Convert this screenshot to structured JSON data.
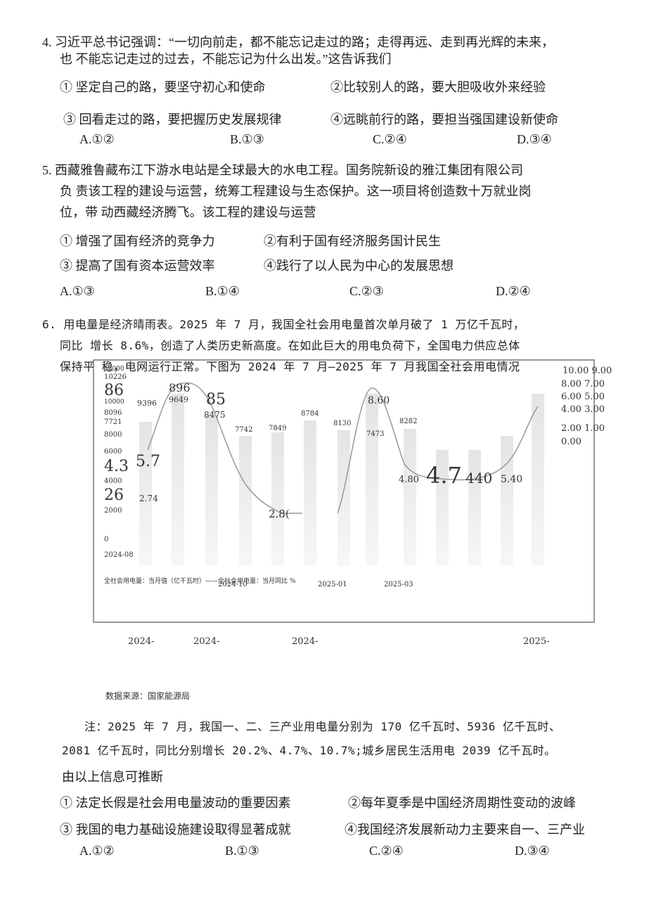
{
  "questions": [
    {
      "stem": [
        "4.  习近平总书记强调：“一切向前走，都不能忘记走过的路；走得再远、走到再光辉的未来，",
        "也  不能忘记走过的过去，不能忘记为什么出发。”这告诉我们"
      ],
      "options": [
        "① 坚定自己的路，要坚守初心和使命",
        "②比较别人的路，要大胆吸收外来经验",
        "③ 回看走过的路，要把握历史发展规律",
        "④远眺前行的路，要担当强国建设新使命"
      ],
      "choices": [
        "A.①②",
        "B.①③",
        "C.②④",
        "D.③④"
      ]
    },
    {
      "stem": [
        "5.  西藏雅鲁藏布江下游水电站是全球最大的水电工程。国务院新设的雅江集团有限公司",
        "负  责该工程的建设与运营，统筹工程建设与生态保护。这一项目将创造数十万就业岗",
        "位，带  动西藏经济腾飞。该工程的建设与运营"
      ],
      "options": [
        "① 增强了国有经济的竞争力",
        "②有利于国有经济服务国计民生",
        "③ 提高了国有资本运营效率",
        "④践行了以人民为中心的发展思想"
      ],
      "choices": [
        "A.①③",
        "B.①④",
        "C.②③",
        "D.②④"
      ]
    },
    {
      "stem": [
        "6.  用电量是经济晴雨表。2025 年 7 月，我国全社会用电量首次单月破了 1 万亿千瓦时，",
        "同比  增长 8.6%，创造了人类历史新高度。在如此巨大的用电负荷下，全国电力供应总体",
        "保持平  稳，电网运行正常。下图为 2024 年 7 月—2025 年 7 月我国全社会用电情况"
      ],
      "chart_labels": [
        "12000",
        "10226",
        "86",
        "10000",
        "8096",
        "7721",
        "8000",
        "6000",
        "4.3",
        "5.7",
        "4000",
        "26",
        "2.74",
        "2000",
        "0",
        "2024-08",
        "9396",
        "896",
        "9649",
        "85",
        "8475",
        "7742",
        "7849",
        "8784",
        "8130",
        "8.60",
        "7473",
        "8282",
        "2.8(",
        "4.80",
        "4.7",
        "440",
        "5.40",
        "10.00 9.00",
        "8.00 7.00",
        "6.00 5.00",
        "4.00 3.00",
        "2.00 1.00",
        "0.00",
        "全社会用电量：当月值（亿千瓦时）——全社会用电量：当月同比 %",
        "2024-10",
        "2025-01",
        "2025-03",
        "2024-",
        "2024-",
        "2024-",
        "2025-"
      ],
      "source": "数据来源：国家能源局",
      "note": [
        "注：2025 年 7 月，我国一、二、三产业用电量分别为 170 亿千瓦时、5936 亿千瓦时、",
        "2081  亿千瓦时，同比分别增长 20.2%、4.7%、10.7%;城乡居民生活用电 2039 亿千瓦时。"
      ],
      "prompt": "由以上信息可推断",
      "options": [
        "① 法定长假是社会用电量波动的重要因素",
        "②每年夏季是中国经济周期性变动的波峰",
        "③ 我国的电力基础设施建设取得显著成就",
        "④我国经济发展新动力主要来自一、三产业"
      ],
      "choices": [
        "A.①②",
        "B.①③",
        "C.②④",
        "D.③④"
      ]
    }
  ]
}
